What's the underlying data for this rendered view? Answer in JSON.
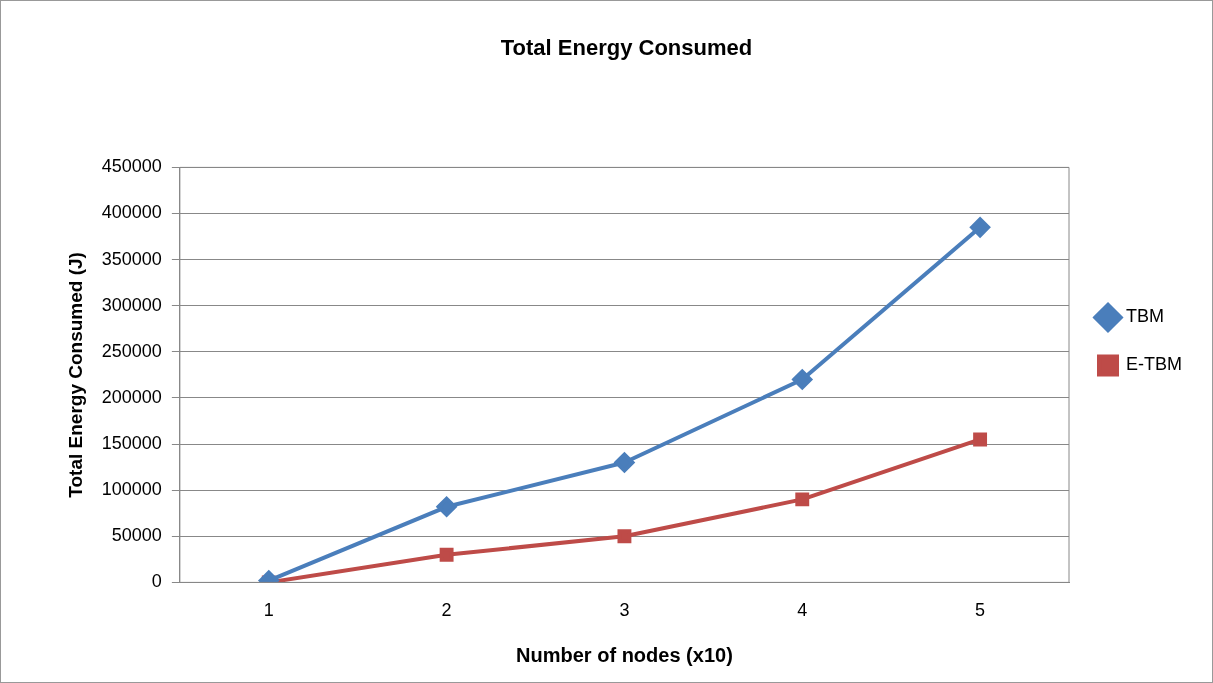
{
  "chart_data": {
    "type": "line",
    "title": "Total Energy Consumed",
    "xlabel": "Number of nodes (x10)",
    "ylabel": "Total Energy Consumed (J)",
    "categories": [
      "1",
      "2",
      "3",
      "4",
      "5"
    ],
    "series": [
      {
        "name": "TBM",
        "color": "#4a7ebb",
        "marker": "diamond",
        "values": [
          2000,
          82000,
          130000,
          220000,
          385000
        ]
      },
      {
        "name": "E-TBM",
        "color": "#be4b48",
        "marker": "square",
        "values": [
          0,
          30000,
          50000,
          90000,
          155000
        ]
      }
    ],
    "ylim": [
      0,
      450000
    ],
    "yticks": [
      0,
      50000,
      100000,
      150000,
      200000,
      250000,
      300000,
      350000,
      400000,
      450000
    ],
    "grid": "y",
    "legend": "right",
    "line_style": "solid"
  }
}
